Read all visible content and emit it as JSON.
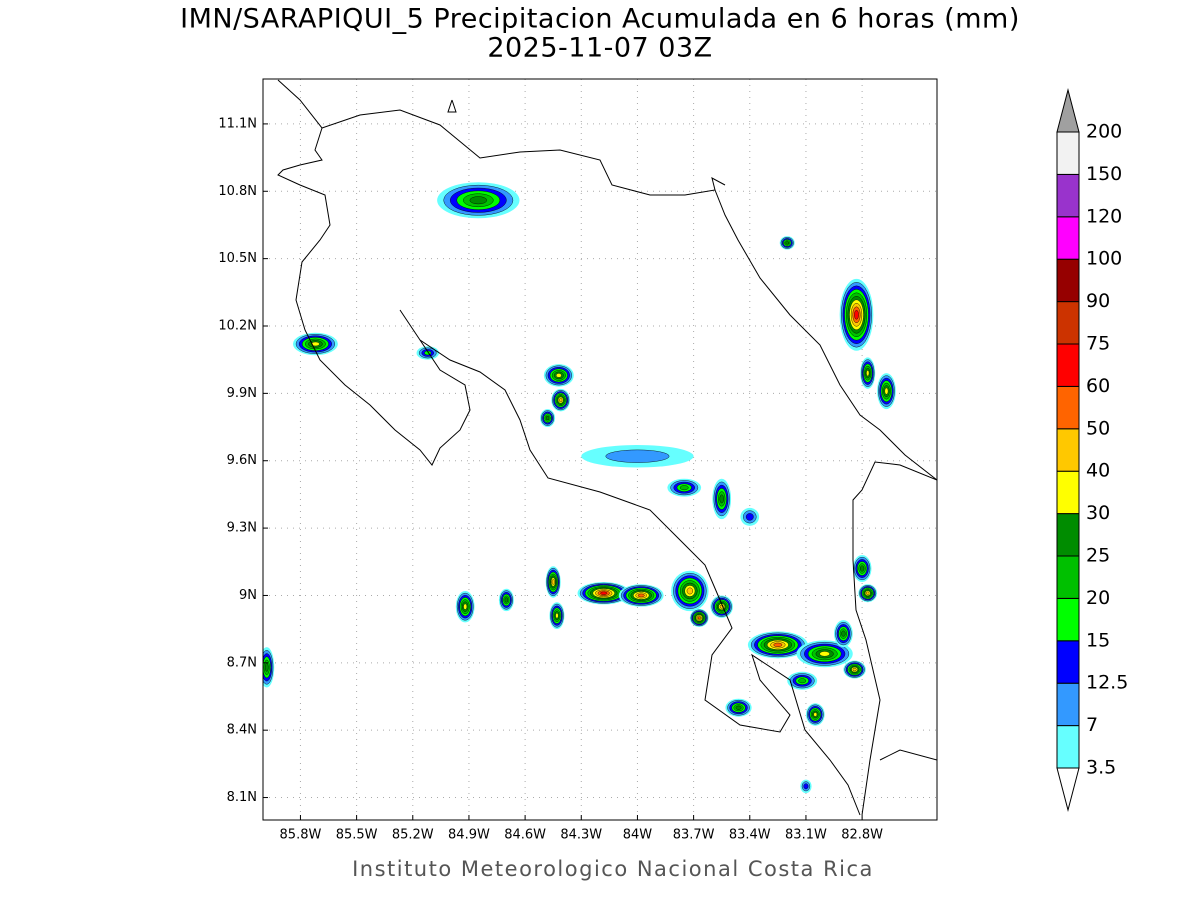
{
  "title": "IMN/SARAPIQUI_5 Precipitacion Acumulada en 6 horas (mm)",
  "subtitle": "2025-11-07 03Z",
  "footer": "Instituto Meteorologico Nacional Costa Rica",
  "map": {
    "xlim": [
      -86.0,
      -82.4
    ],
    "ylim": [
      8.0,
      11.3
    ],
    "xticks": [
      {
        "value": -85.8,
        "label": "85.8W"
      },
      {
        "value": -85.5,
        "label": "85.5W"
      },
      {
        "value": -85.2,
        "label": "85.2W"
      },
      {
        "value": -84.9,
        "label": "84.9W"
      },
      {
        "value": -84.6,
        "label": "84.6W"
      },
      {
        "value": -84.3,
        "label": "84.3W"
      },
      {
        "value": -84.0,
        "label": "84W"
      },
      {
        "value": -83.7,
        "label": "83.7W"
      },
      {
        "value": -83.4,
        "label": "83.4W"
      },
      {
        "value": -83.1,
        "label": "83.1W"
      },
      {
        "value": -82.8,
        "label": "82.8W"
      }
    ],
    "yticks": [
      {
        "value": 8.1,
        "label": "8.1N"
      },
      {
        "value": 8.4,
        "label": "8.4N"
      },
      {
        "value": 8.7,
        "label": "8.7N"
      },
      {
        "value": 9.0,
        "label": "9N"
      },
      {
        "value": 9.3,
        "label": "9.3N"
      },
      {
        "value": 9.6,
        "label": "9.6N"
      },
      {
        "value": 9.9,
        "label": "9.9N"
      },
      {
        "value": 10.2,
        "label": "10.2N"
      },
      {
        "value": 10.5,
        "label": "10.5N"
      },
      {
        "value": 10.8,
        "label": "10.8N"
      },
      {
        "value": 11.1,
        "label": "11.1N"
      }
    ],
    "grid": true
  },
  "colorbar": {
    "levels": [
      3.5,
      7,
      12.5,
      15,
      20,
      25,
      30,
      40,
      50,
      60,
      75,
      90,
      100,
      120,
      150,
      200
    ],
    "colors": [
      "#66ffff",
      "#3399ff",
      "#0000ff",
      "#00ff00",
      "#00c000",
      "#008c00",
      "#ffff00",
      "#ffc800",
      "#ff6400",
      "#ff0000",
      "#cc3300",
      "#960000",
      "#ff00ff",
      "#9933cc",
      "#f2f2f2"
    ],
    "under_color": "#ffffff",
    "over_color": "#a0a0a0"
  },
  "cells": [
    {
      "lon": -84.85,
      "lat": 10.76,
      "max": 25,
      "rx": 0.22,
      "ry": 0.08
    },
    {
      "lon": -85.72,
      "lat": 10.12,
      "max": 30,
      "rx": 0.12,
      "ry": 0.05
    },
    {
      "lon": -85.12,
      "lat": 10.08,
      "max": 15,
      "rx": 0.06,
      "ry": 0.03
    },
    {
      "lon": -84.42,
      "lat": 9.98,
      "max": 30,
      "rx": 0.08,
      "ry": 0.05
    },
    {
      "lon": -84.41,
      "lat": 9.87,
      "max": 40,
      "rx": 0.05,
      "ry": 0.05
    },
    {
      "lon": -84.48,
      "lat": 9.79,
      "max": 25,
      "rx": 0.04,
      "ry": 0.04
    },
    {
      "lon": -84.0,
      "lat": 9.62,
      "max": 7,
      "rx": 0.3,
      "ry": 0.05
    },
    {
      "lon": -83.75,
      "lat": 9.48,
      "max": 20,
      "rx": 0.09,
      "ry": 0.04
    },
    {
      "lon": -83.55,
      "lat": 9.43,
      "max": 25,
      "rx": 0.05,
      "ry": 0.09
    },
    {
      "lon": -83.4,
      "lat": 9.35,
      "max": 12.5,
      "rx": 0.05,
      "ry": 0.04
    },
    {
      "lon": -84.45,
      "lat": 9.06,
      "max": 40,
      "rx": 0.04,
      "ry": 0.07
    },
    {
      "lon": -84.43,
      "lat": 8.91,
      "max": 30,
      "rx": 0.04,
      "ry": 0.06
    },
    {
      "lon": -84.18,
      "lat": 9.01,
      "max": 60,
      "rx": 0.14,
      "ry": 0.05
    },
    {
      "lon": -83.98,
      "lat": 9.0,
      "max": 50,
      "rx": 0.12,
      "ry": 0.05
    },
    {
      "lon": -83.72,
      "lat": 9.02,
      "max": 40,
      "rx": 0.1,
      "ry": 0.09
    },
    {
      "lon": -83.67,
      "lat": 8.9,
      "max": 50,
      "rx": 0.05,
      "ry": 0.04
    },
    {
      "lon": -83.55,
      "lat": 8.95,
      "max": 40,
      "rx": 0.06,
      "ry": 0.05
    },
    {
      "lon": -83.25,
      "lat": 8.78,
      "max": 50,
      "rx": 0.16,
      "ry": 0.06
    },
    {
      "lon": -83.0,
      "lat": 8.74,
      "max": 30,
      "rx": 0.15,
      "ry": 0.06
    },
    {
      "lon": -82.9,
      "lat": 8.83,
      "max": 25,
      "rx": 0.05,
      "ry": 0.06
    },
    {
      "lon": -82.84,
      "lat": 8.67,
      "max": 40,
      "rx": 0.06,
      "ry": 0.04
    },
    {
      "lon": -83.12,
      "lat": 8.62,
      "max": 20,
      "rx": 0.08,
      "ry": 0.04
    },
    {
      "lon": -83.05,
      "lat": 8.47,
      "max": 30,
      "rx": 0.05,
      "ry": 0.05
    },
    {
      "lon": -83.46,
      "lat": 8.5,
      "max": 25,
      "rx": 0.07,
      "ry": 0.04
    },
    {
      "lon": -82.83,
      "lat": 10.25,
      "max": 60,
      "rx": 0.09,
      "ry": 0.16
    },
    {
      "lon": -82.77,
      "lat": 9.99,
      "max": 30,
      "rx": 0.04,
      "ry": 0.07
    },
    {
      "lon": -82.67,
      "lat": 9.91,
      "max": 30,
      "rx": 0.05,
      "ry": 0.08
    },
    {
      "lon": -82.8,
      "lat": 9.12,
      "max": 25,
      "rx": 0.05,
      "ry": 0.06
    },
    {
      "lon": -82.77,
      "lat": 9.01,
      "max": 40,
      "rx": 0.05,
      "ry": 0.04
    },
    {
      "lon": -84.92,
      "lat": 8.95,
      "max": 30,
      "rx": 0.05,
      "ry": 0.07
    },
    {
      "lon": -84.7,
      "lat": 8.98,
      "max": 25,
      "rx": 0.04,
      "ry": 0.05
    },
    {
      "lon": -85.98,
      "lat": 8.68,
      "max": 25,
      "rx": 0.04,
      "ry": 0.09
    },
    {
      "lon": -83.2,
      "lat": 10.57,
      "max": 25,
      "rx": 0.04,
      "ry": 0.03
    },
    {
      "lon": -83.1,
      "lat": 8.15,
      "max": 12.5,
      "rx": 0.03,
      "ry": 0.03
    }
  ]
}
